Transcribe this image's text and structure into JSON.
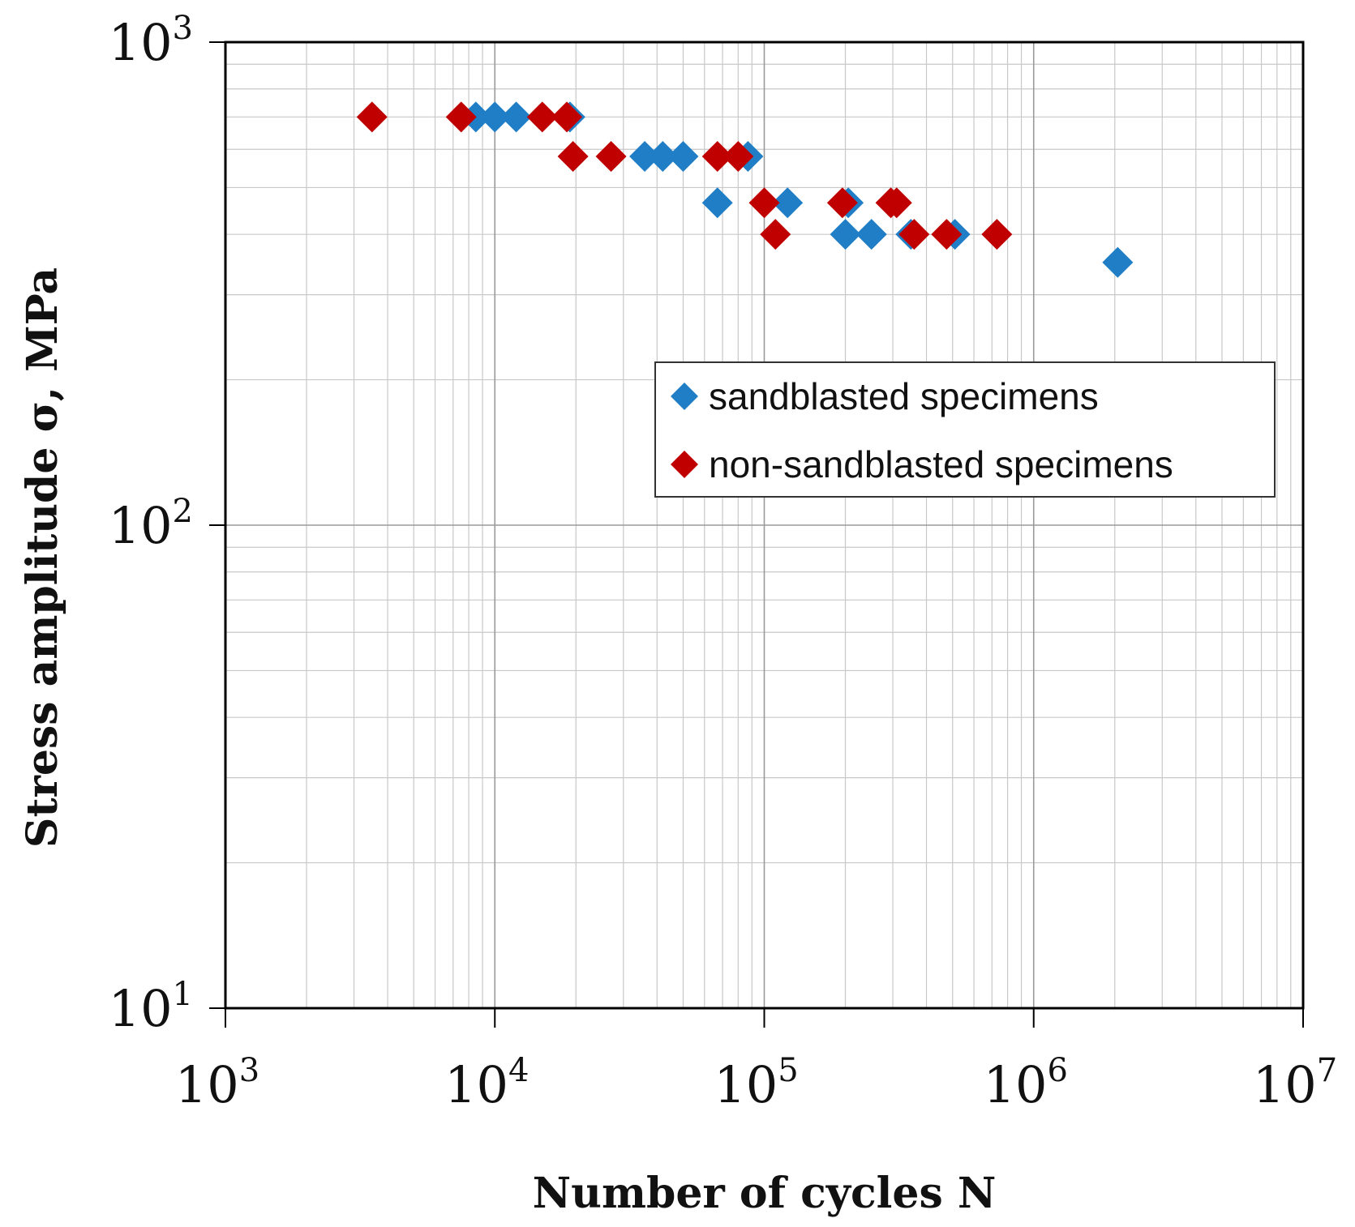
{
  "chart_data": {
    "type": "scatter",
    "xscale": "log",
    "yscale": "log",
    "xlim": [
      1000,
      10000000
    ],
    "ylim": [
      10,
      1000
    ],
    "xlabel": "Number of cycles N",
    "ylabel": "Stress amplitude σ, MPa",
    "grid": true,
    "x_ticks": [
      {
        "base": "10",
        "exp": "3"
      },
      {
        "base": "10",
        "exp": "4"
      },
      {
        "base": "10",
        "exp": "5"
      },
      {
        "base": "10",
        "exp": "6"
      },
      {
        "base": "10",
        "exp": "7"
      }
    ],
    "y_ticks": [
      {
        "base": "10",
        "exp": "1"
      },
      {
        "base": "10",
        "exp": "2"
      },
      {
        "base": "10",
        "exp": "3"
      }
    ],
    "legend_position": "upper-right",
    "series": [
      {
        "name": "sandblasted specimens",
        "color": "#1f7ec6",
        "marker": "diamond",
        "points": [
          [
            8500,
            700
          ],
          [
            10000,
            700
          ],
          [
            12000,
            700
          ],
          [
            19000,
            700
          ],
          [
            36000,
            580
          ],
          [
            42000,
            580
          ],
          [
            50000,
            580
          ],
          [
            87000,
            580
          ],
          [
            67000,
            465
          ],
          [
            122000,
            465
          ],
          [
            205000,
            465
          ],
          [
            200000,
            400
          ],
          [
            250000,
            400
          ],
          [
            350000,
            400
          ],
          [
            510000,
            400
          ],
          [
            2050000,
            350
          ]
        ]
      },
      {
        "name": "non-sandblasted specimens",
        "color": "#c00000",
        "marker": "diamond",
        "points": [
          [
            3500,
            700
          ],
          [
            7500,
            700
          ],
          [
            15000,
            700
          ],
          [
            18500,
            700
          ],
          [
            19500,
            580
          ],
          [
            27000,
            580
          ],
          [
            67000,
            580
          ],
          [
            80000,
            580
          ],
          [
            100000,
            465
          ],
          [
            195000,
            465
          ],
          [
            295000,
            465
          ],
          [
            310000,
            465
          ],
          [
            110000,
            400
          ],
          [
            360000,
            400
          ],
          [
            475000,
            400
          ],
          [
            730000,
            400
          ]
        ]
      }
    ]
  }
}
